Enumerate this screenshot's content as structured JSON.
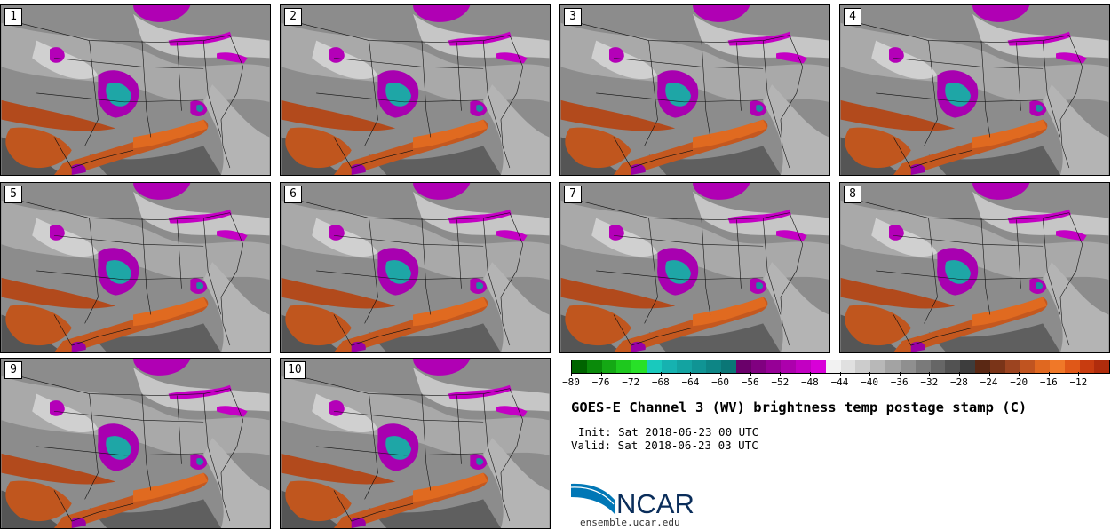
{
  "panels": [
    {
      "label": "1"
    },
    {
      "label": "2"
    },
    {
      "label": "3"
    },
    {
      "label": "4"
    },
    {
      "label": "5"
    },
    {
      "label": "6"
    },
    {
      "label": "7"
    },
    {
      "label": "8"
    },
    {
      "label": "9"
    },
    {
      "label": "10"
    }
  ],
  "colorbar": {
    "colors": [
      "#006400",
      "#0a8a0a",
      "#14a814",
      "#1ec81e",
      "#28e028",
      "#19c9bd",
      "#16b2b0",
      "#13a3a1",
      "#109494",
      "#0d8585",
      "#0a7676",
      "#6a006a",
      "#800080",
      "#960096",
      "#ac00ac",
      "#c200c2",
      "#d800d8",
      "#f2f2f2",
      "#e0e0e0",
      "#cccccc",
      "#b8b8b8",
      "#a3a3a3",
      "#8f8f8f",
      "#7a7a7a",
      "#666666",
      "#525252",
      "#3d3d3d",
      "#5a2814",
      "#7a3418",
      "#9c4420",
      "#c05420",
      "#e06820",
      "#f07828",
      "#e05818",
      "#c83c10",
      "#b02c0c"
    ],
    "tick_labels": [
      "−80",
      "−76",
      "−72",
      "−68",
      "−64",
      "−60",
      "−56",
      "−52",
      "−48",
      "−44",
      "−40",
      "−36",
      "−32",
      "−28",
      "−24",
      "−20",
      "−16",
      "−12"
    ]
  },
  "title": "GOES-E Channel 3 (WV) brightness temp postage stamp (C)",
  "init": "Init: Sat 2018-06-23 00 UTC",
  "valid": "Valid: Sat 2018-06-23 03 UTC",
  "logo": {
    "text": "NCAR"
  },
  "url": "ensemble.ucar.edu"
}
